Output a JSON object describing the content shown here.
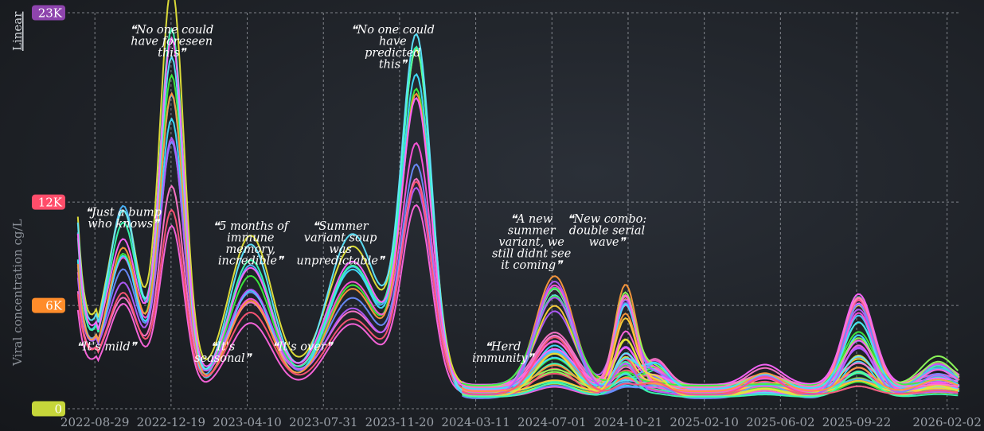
{
  "scale_toggle": "Linear",
  "chart_data": {
    "type": "line",
    "ylabel": "Viral concentration cg/L",
    "ylim": [
      0,
      23000
    ],
    "x_range": [
      "2022-07-20",
      "2026-02-20"
    ],
    "x_ticks": [
      "2022-08-29",
      "2022-12-19",
      "2023-04-10",
      "2023-07-31",
      "2023-11-20",
      "2024-03-11",
      "2024-07-01",
      "2024-10-21",
      "2025-02-10",
      "2025-06-02",
      "2025-09-22",
      "2026-02-02"
    ],
    "y_badges": [
      {
        "label": "23K",
        "value": 23000,
        "color": "#8e44ad"
      },
      {
        "label": "12K",
        "value": 12000,
        "color": "#ff4d6a"
      },
      {
        "label": "6K",
        "value": 6000,
        "color": "#ff8c2a"
      },
      {
        "label": "0",
        "value": 0,
        "color": "#c6d63a"
      }
    ],
    "grid": true,
    "annotations": [
      {
        "date": "2022-09-15",
        "value": 3400,
        "lines": [
          "❝It's mild❞"
        ]
      },
      {
        "date": "2022-10-10",
        "value": 11200,
        "lines": [
          "❝Just a bump",
          "who knows❞"
        ]
      },
      {
        "date": "2022-12-20",
        "value": 21800,
        "lines": [
          "❝No one could",
          "have foreseen",
          "this❞"
        ]
      },
      {
        "date": "2023-03-05",
        "value": 3400,
        "lines": [
          "❝It's",
          "seasonal❞"
        ]
      },
      {
        "date": "2023-04-15",
        "value": 10400,
        "lines": [
          "❝5 months of",
          "immune",
          "memory,",
          "incredible❞"
        ]
      },
      {
        "date": "2023-06-30",
        "value": 3400,
        "lines": [
          "❝It's over❞"
        ]
      },
      {
        "date": "2023-08-25",
        "value": 10400,
        "lines": [
          "❝Summer",
          "variant soup",
          "was",
          "unpredictable❞"
        ]
      },
      {
        "date": "2023-11-10",
        "value": 21800,
        "lines": [
          "❝No one could",
          "have",
          "predicted",
          "this❞"
        ]
      },
      {
        "date": "2024-04-20",
        "value": 3400,
        "lines": [
          "❝Herd",
          "immunity❞"
        ]
      },
      {
        "date": "2024-06-01",
        "value": 10800,
        "lines": [
          "❝A new",
          "summer",
          "variant, we",
          "still didnt see",
          "it coming❞"
        ]
      },
      {
        "date": "2024-09-20",
        "value": 10800,
        "lines": [
          "❝New combo:",
          "double serial",
          "wave❞"
        ]
      }
    ],
    "waves": [
      {
        "date": "2022-09-01",
        "height": 1200,
        "width": 15
      },
      {
        "date": "2022-10-10",
        "height": 8500,
        "width": 22
      },
      {
        "date": "2022-12-20",
        "height": 17500,
        "width": 18
      },
      {
        "date": "2023-04-15",
        "height": 6500,
        "width": 32
      },
      {
        "date": "2023-09-12",
        "height": 6800,
        "width": 38
      },
      {
        "date": "2023-12-15",
        "height": 17500,
        "width": 22
      },
      {
        "date": "2024-07-05",
        "height": 4000,
        "width": 28
      },
      {
        "date": "2024-10-17",
        "height": 3800,
        "width": 16
      },
      {
        "date": "2024-11-30",
        "height": 900,
        "width": 18
      },
      {
        "date": "2025-05-10",
        "height": 700,
        "width": 25
      },
      {
        "date": "2025-09-25",
        "height": 3500,
        "width": 22
      },
      {
        "date": "2026-01-20",
        "height": 1000,
        "width": 25
      }
    ],
    "baseline": 1000,
    "start_value": 8000,
    "series_colors": [
      "#4db8ff",
      "#ff66e0",
      "#3ef03e",
      "#ff55dd",
      "#6c8cff",
      "#40e0ff",
      "#ff77cc",
      "#b45cff",
      "#ff9a3c",
      "#e6e63a",
      "#39ffb0",
      "#ff5577",
      "#5ee6ff",
      "#ff66ff",
      "#8fff5a",
      "#ffd23a"
    ]
  }
}
